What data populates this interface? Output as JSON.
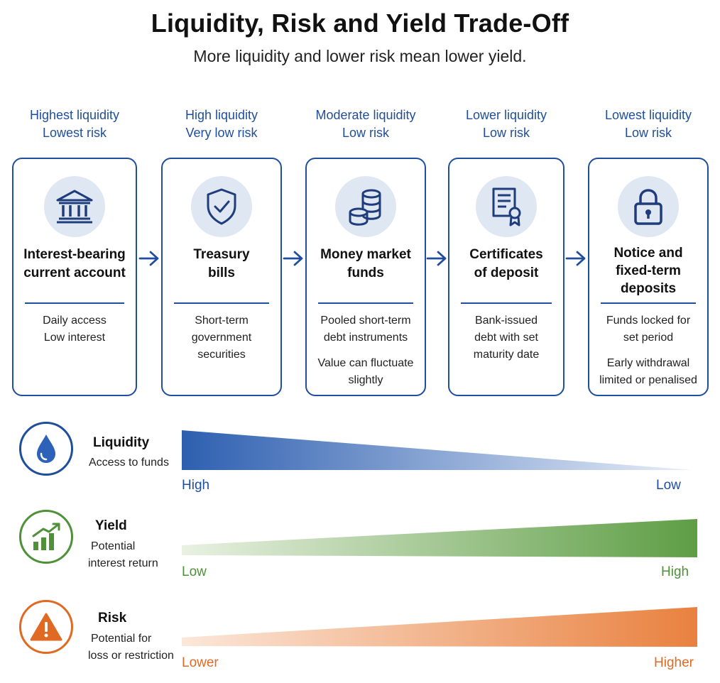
{
  "title": "Liquidity, Risk and Yield Trade-Off",
  "subtitle": "More liquidity and lower risk mean lower yield.",
  "products": [
    {
      "heading": [
        "Highest liquidity",
        "Lowest risk"
      ],
      "icon": "bank-icon",
      "title": [
        "Interest-bearing",
        "current account"
      ],
      "desc": [
        [
          "Daily access",
          "Low interest"
        ]
      ]
    },
    {
      "heading": [
        "High liquidity",
        "Very low risk"
      ],
      "icon": "shield-check-icon",
      "title": [
        "Treasury",
        "bills"
      ],
      "desc": [
        [
          "Short-term",
          "government",
          "securities"
        ]
      ]
    },
    {
      "heading": [
        "Moderate liquidity",
        "Low risk"
      ],
      "icon": "coins-icon",
      "title": [
        "Money market",
        "funds"
      ],
      "desc": [
        [
          "Pooled short-term",
          "debt instruments"
        ],
        [
          "Value can fluctuate",
          "slightly"
        ]
      ]
    },
    {
      "heading": [
        "Lower liquidity",
        "Low risk"
      ],
      "icon": "certificate-icon",
      "title": [
        "Certificates",
        "of deposit"
      ],
      "desc": [
        [
          "Bank-issued",
          "debt with set",
          "maturity date"
        ]
      ]
    },
    {
      "heading": [
        "Lowest liquidity",
        "Low risk"
      ],
      "icon": "padlock-icon",
      "title": [
        "Notice and",
        "fixed-term",
        "deposits"
      ],
      "desc": [
        [
          "Funds locked for",
          "set period"
        ],
        [
          "Early withdrawal",
          "limited or penalised"
        ]
      ]
    }
  ],
  "metrics": [
    {
      "name": "Liquidity",
      "sub": [
        "Access to funds"
      ],
      "icon": "water-drop-icon",
      "color": "#1f4e9c",
      "left_label": "High",
      "right_label": "Low",
      "direction": "decreasing"
    },
    {
      "name": "Yield",
      "sub": [
        "Potential",
        "interest return"
      ],
      "icon": "growth-chart-icon",
      "color": "#4f9138",
      "left_label": "Low",
      "right_label": "High",
      "direction": "increasing"
    },
    {
      "name": "Risk",
      "sub": [
        "Potential for",
        "loss or restriction"
      ],
      "icon": "warning-icon",
      "color": "#e06a23",
      "left_label": "Lower",
      "right_label": "Higher",
      "direction": "increasing"
    }
  ]
}
